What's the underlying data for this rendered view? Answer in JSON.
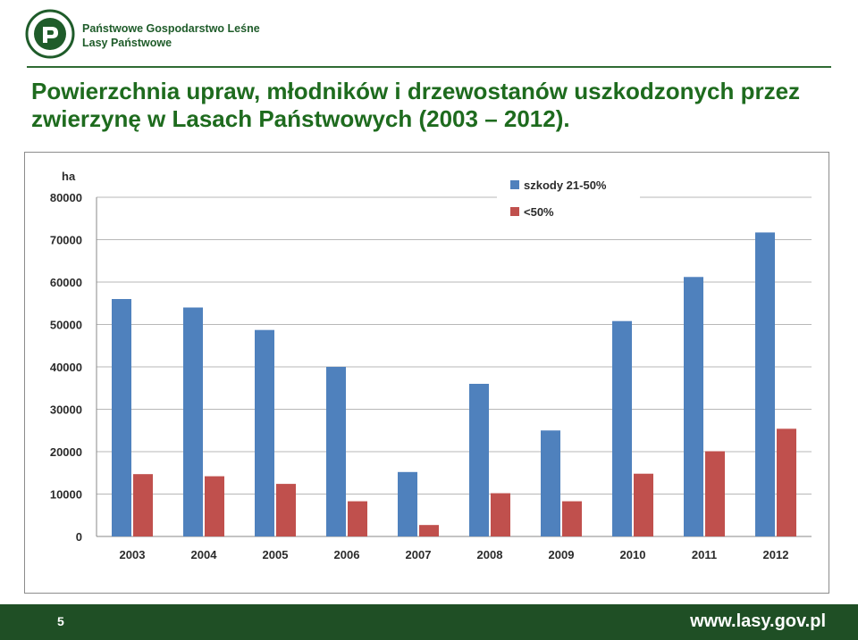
{
  "header": {
    "brand_line1": "Państwowe Gospodarstwo Leśne",
    "brand_line2": "Lasy Państwowe",
    "logo_text": "LASY PAŃSTWOWE"
  },
  "title": "Powierzchnia upraw, młodników i drzewostanów uszkodzonych przez zwierzynę w Lasach Państwowych (2003 – 2012).",
  "footer": {
    "page_number": "5",
    "url": "www.lasy.gov.pl"
  },
  "colors": {
    "series1": "#4f81bd",
    "series2": "#c0504d",
    "brand_green": "#1f4f25",
    "title_green": "#1e6b1e"
  },
  "chart_data": {
    "type": "bar",
    "ylabel": "ha",
    "ylim": [
      0,
      80000
    ],
    "yticks": [
      "0",
      "10000",
      "20000",
      "30000",
      "40000",
      "50000",
      "60000",
      "70000",
      "80000"
    ],
    "categories": [
      "2003",
      "2004",
      "2005",
      "2006",
      "2007",
      "2008",
      "2009",
      "2010",
      "2011",
      "2012"
    ],
    "series": [
      {
        "name": "szkody 21-50%",
        "values": [
          56000,
          54000,
          48700,
          40000,
          15200,
          36000,
          25000,
          50800,
          61200,
          71700
        ]
      },
      {
        "name": "<50%",
        "values": [
          14700,
          14200,
          12400,
          8300,
          2700,
          10200,
          8300,
          14800,
          20100,
          25400
        ]
      }
    ],
    "grid": true,
    "legend": "top-right"
  }
}
